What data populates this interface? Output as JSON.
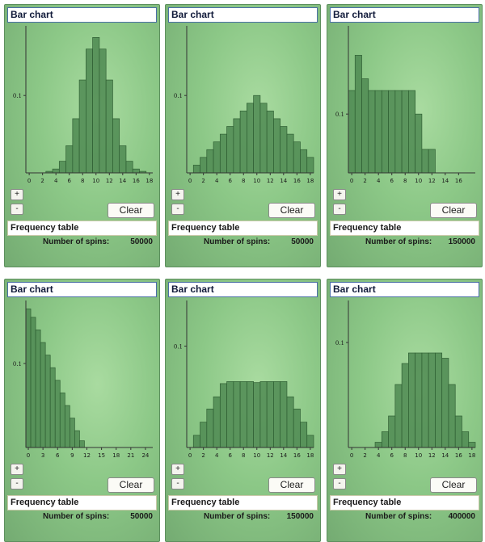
{
  "panels": [
    {
      "title": "Bar chart",
      "plus_label": "+",
      "minus_label": "-",
      "clear_label": "Clear",
      "freq_label": "Frequency table",
      "spins_label": "Number of spins:",
      "spins_value": "50000",
      "chart_data": {
        "type": "bar",
        "x": [
          0,
          1,
          2,
          3,
          4,
          5,
          6,
          7,
          8,
          9,
          10,
          11,
          12,
          13,
          14,
          15,
          16,
          17,
          18
        ],
        "values": [
          0,
          0,
          0,
          0.002,
          0.005,
          0.015,
          0.035,
          0.07,
          0.12,
          0.16,
          0.175,
          0.16,
          0.12,
          0.07,
          0.035,
          0.015,
          0.005,
          0.002,
          0
        ],
        "xticks": [
          0,
          2,
          4,
          6,
          8,
          10,
          12,
          14,
          16,
          18
        ],
        "xlim": [
          0,
          18
        ],
        "yticks": [
          0.1
        ],
        "ylim": [
          0,
          0.19
        ]
      }
    },
    {
      "title": "Bar chart",
      "plus_label": "+",
      "minus_label": "-",
      "clear_label": "Clear",
      "freq_label": "Frequency table",
      "spins_label": "Number of spins:",
      "spins_value": "50000",
      "chart_data": {
        "type": "bar",
        "x": [
          0,
          1,
          2,
          3,
          4,
          5,
          6,
          7,
          8,
          9,
          10,
          11,
          12,
          13,
          14,
          15,
          16,
          17,
          18
        ],
        "values": [
          0,
          0.01,
          0.02,
          0.03,
          0.04,
          0.05,
          0.06,
          0.07,
          0.08,
          0.09,
          0.1,
          0.09,
          0.08,
          0.07,
          0.06,
          0.05,
          0.04,
          0.03,
          0.02
        ],
        "xticks": [
          0,
          2,
          4,
          6,
          8,
          10,
          12,
          14,
          16,
          18
        ],
        "xlim": [
          0,
          18
        ],
        "yticks": [
          0.1
        ],
        "ylim": [
          0,
          0.19
        ]
      }
    },
    {
      "title": "Bar chart",
      "plus_label": "+",
      "minus_label": "-",
      "clear_label": "Clear",
      "freq_label": "Frequency table",
      "spins_label": "Number of spins:",
      "spins_value": "150000",
      "chart_data": {
        "type": "bar",
        "x": [
          0,
          1,
          2,
          3,
          4,
          5,
          6,
          7,
          8,
          9,
          10,
          11,
          12,
          13,
          14,
          15,
          16,
          17,
          18
        ],
        "values": [
          0.14,
          0.2,
          0.16,
          0.14,
          0.14,
          0.14,
          0.14,
          0.14,
          0.14,
          0.14,
          0.1,
          0.04,
          0.04,
          0,
          0,
          0,
          0,
          0,
          0
        ],
        "xticks": [
          0,
          2,
          4,
          6,
          8,
          10,
          12,
          14,
          16
        ],
        "xlim": [
          0,
          18
        ],
        "yticks": [
          0.1
        ],
        "ylim": [
          0,
          0.25
        ]
      }
    },
    {
      "title": "Bar chart",
      "plus_label": "+",
      "minus_label": "-",
      "clear_label": "Clear",
      "freq_label": "Frequency table",
      "spins_label": "Number of spins:",
      "spins_value": "50000",
      "chart_data": {
        "type": "bar",
        "x": [
          0,
          1,
          2,
          3,
          4,
          5,
          6,
          7,
          8,
          9,
          10,
          11,
          12,
          13,
          14,
          15,
          16,
          17,
          18,
          19,
          20,
          21,
          22,
          23,
          24
        ],
        "values": [
          0.165,
          0.155,
          0.14,
          0.125,
          0.11,
          0.095,
          0.08,
          0.065,
          0.05,
          0.035,
          0.02,
          0.008,
          0,
          0,
          0,
          0,
          0,
          0,
          0,
          0,
          0,
          0,
          0,
          0,
          0
        ],
        "xticks": [
          0,
          3,
          6,
          9,
          12,
          15,
          18,
          21,
          24
        ],
        "xlim": [
          0,
          25
        ],
        "yticks": [
          0.1
        ],
        "ylim": [
          0,
          0.175
        ]
      }
    },
    {
      "title": "Bar chart",
      "plus_label": "+",
      "minus_label": "-",
      "clear_label": "Clear",
      "freq_label": "Frequency table",
      "spins_label": "Number of spins:",
      "spins_value": "150000",
      "chart_data": {
        "type": "bar",
        "x": [
          0,
          1,
          2,
          3,
          4,
          5,
          6,
          7,
          8,
          9,
          10,
          11,
          12,
          13,
          14,
          15,
          16,
          17,
          18
        ],
        "values": [
          0,
          0.012,
          0.025,
          0.038,
          0.05,
          0.063,
          0.065,
          0.065,
          0.065,
          0.065,
          0.064,
          0.065,
          0.065,
          0.065,
          0.065,
          0.05,
          0.038,
          0.025,
          0.012
        ],
        "xticks": [
          0,
          2,
          4,
          6,
          8,
          10,
          12,
          14,
          16,
          18
        ],
        "xlim": [
          0,
          18
        ],
        "yticks": [
          0.1
        ],
        "ylim": [
          0,
          0.145
        ]
      }
    },
    {
      "title": "Bar chart",
      "plus_label": "+",
      "minus_label": "-",
      "clear_label": "Clear",
      "freq_label": "Frequency table",
      "spins_label": "Number of spins:",
      "spins_value": "400000",
      "chart_data": {
        "type": "bar",
        "x": [
          0,
          1,
          2,
          3,
          4,
          5,
          6,
          7,
          8,
          9,
          10,
          11,
          12,
          13,
          14,
          15,
          16,
          17,
          18
        ],
        "values": [
          0,
          0,
          0,
          0,
          0.005,
          0.015,
          0.03,
          0.06,
          0.08,
          0.09,
          0.09,
          0.09,
          0.09,
          0.09,
          0.085,
          0.06,
          0.03,
          0.015,
          0.005
        ],
        "xticks": [
          0,
          2,
          4,
          6,
          8,
          10,
          12,
          14,
          16,
          18
        ],
        "xlim": [
          0,
          18
        ],
        "yticks": [
          0.1
        ],
        "ylim": [
          0,
          0.14
        ]
      }
    }
  ]
}
